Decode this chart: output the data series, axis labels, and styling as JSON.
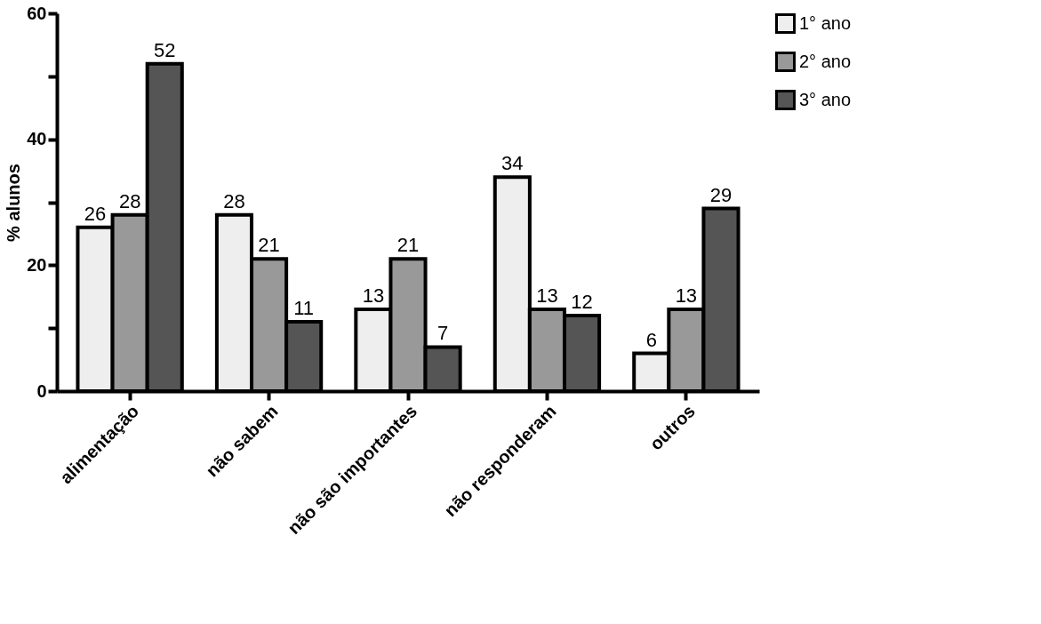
{
  "chart_data": {
    "type": "bar",
    "ylabel": "% alunos",
    "categories": [
      "alimentação",
      "não sabem",
      "não são importantes",
      "não responderam",
      "outros"
    ],
    "series": [
      {
        "name": "1° ano",
        "color": "#eeeeee",
        "values": [
          26,
          28,
          13,
          34,
          6
        ]
      },
      {
        "name": "2° ano",
        "color": "#999999",
        "values": [
          28,
          21,
          21,
          13,
          13
        ]
      },
      {
        "name": "3° ano",
        "color": "#555555",
        "values": [
          52,
          11,
          7,
          12,
          29
        ]
      }
    ],
    "ylim": [
      0,
      60
    ],
    "yticks": [
      0,
      {
        "value": 10,
        "label": null
      },
      20,
      {
        "value": 30,
        "label": null
      },
      40,
      {
        "value": 50,
        "label": null
      },
      60
    ],
    "grid": false,
    "legend": "top right",
    "data_labels": true
  }
}
